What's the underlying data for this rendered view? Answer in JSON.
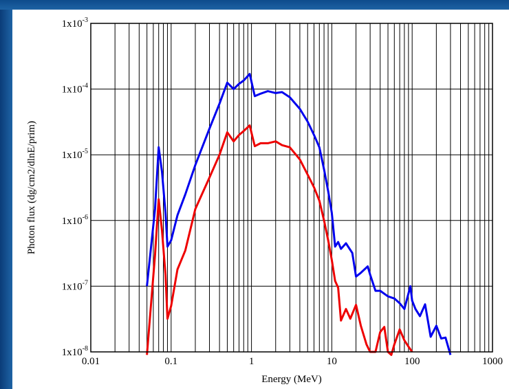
{
  "chart_data": {
    "type": "line",
    "title": "",
    "xlabel": "Energy (MeV)",
    "ylabel": "Photon flux (dg/cm2/dlnE/prim)",
    "x_scale": "log",
    "y_scale": "log",
    "xlim": [
      0.01,
      1000
    ],
    "ylim": [
      1e-08,
      0.001
    ],
    "grid": true,
    "legend": "none",
    "x_ticks": [
      {
        "value": 0.01,
        "label": "0.01"
      },
      {
        "value": 0.1,
        "label": "0.1"
      },
      {
        "value": 1,
        "label": "1"
      },
      {
        "value": 10,
        "label": "10"
      },
      {
        "value": 100,
        "label": "100"
      },
      {
        "value": 1000,
        "label": "1000"
      }
    ],
    "y_ticks": [
      {
        "value": 0.001,
        "mantissa": "1x10",
        "exponent": "-3"
      },
      {
        "value": 0.0001,
        "mantissa": "1x10",
        "exponent": "-4"
      },
      {
        "value": 1e-05,
        "mantissa": "1x10",
        "exponent": "-5"
      },
      {
        "value": 1e-06,
        "mantissa": "1x10",
        "exponent": "-6"
      },
      {
        "value": 1e-07,
        "mantissa": "1x10",
        "exponent": "-7"
      },
      {
        "value": 1e-08,
        "mantissa": "1x10",
        "exponent": "-8"
      }
    ],
    "series": [
      {
        "color": "#0000ee",
        "points": [
          [
            0.05,
            1e-07
          ],
          [
            0.063,
            1.5e-06
          ],
          [
            0.07,
            1.3e-05
          ],
          [
            0.077,
            5.5e-06
          ],
          [
            0.085,
            1.3e-06
          ],
          [
            0.09,
            4e-07
          ],
          [
            0.1,
            5e-07
          ],
          [
            0.12,
            1.2e-06
          ],
          [
            0.15,
            2.5e-06
          ],
          [
            0.2,
            7e-06
          ],
          [
            0.3,
            2.5e-05
          ],
          [
            0.4,
            6e-05
          ],
          [
            0.5,
            0.000125
          ],
          [
            0.6,
            0.0001
          ],
          [
            0.7,
            0.00012
          ],
          [
            0.8,
            0.000135
          ],
          [
            0.95,
            0.00017
          ],
          [
            1.1,
            7.8e-05
          ],
          [
            1.3,
            8.5e-05
          ],
          [
            1.6,
            9.3e-05
          ],
          [
            2.0,
            8.7e-05
          ],
          [
            2.4,
            9e-05
          ],
          [
            3.0,
            7.5e-05
          ],
          [
            4.0,
            5e-05
          ],
          [
            5.0,
            3.2e-05
          ],
          [
            6.0,
            2e-05
          ],
          [
            7.0,
            1.3e-05
          ],
          [
            8.0,
            6e-06
          ],
          [
            9.0,
            2.8e-06
          ],
          [
            10.0,
            1.3e-06
          ],
          [
            11.0,
            4e-07
          ],
          [
            12.0,
            4.7e-07
          ],
          [
            13.0,
            3.7e-07
          ],
          [
            15.0,
            4.5e-07
          ],
          [
            18.0,
            3.2e-07
          ],
          [
            20.0,
            1.4e-07
          ],
          [
            23.0,
            1.6e-07
          ],
          [
            28.0,
            2e-07
          ],
          [
            30.0,
            1.5e-07
          ],
          [
            35.0,
            8.5e-08
          ],
          [
            40.0,
            8.5e-08
          ],
          [
            50.0,
            7e-08
          ],
          [
            60.0,
            6.5e-08
          ],
          [
            70.0,
            5.5e-08
          ],
          [
            80.0,
            4.5e-08
          ],
          [
            95.0,
            1e-07
          ],
          [
            100.0,
            6e-08
          ],
          [
            110.0,
            4.5e-08
          ],
          [
            125.0,
            3.5e-08
          ],
          [
            145.0,
            5.3e-08
          ],
          [
            170.0,
            1.7e-08
          ],
          [
            200.0,
            2.5e-08
          ],
          [
            230.0,
            1.6e-08
          ],
          [
            260.0,
            1.65e-08
          ],
          [
            300.0,
            9e-09
          ]
        ]
      },
      {
        "color": "#ee0000",
        "points": [
          [
            0.05,
            9e-09
          ],
          [
            0.063,
            3e-07
          ],
          [
            0.07,
            2.1e-06
          ],
          [
            0.077,
            7e-07
          ],
          [
            0.085,
            1.5e-07
          ],
          [
            0.09,
            3.2e-08
          ],
          [
            0.1,
            5e-08
          ],
          [
            0.12,
            1.8e-07
          ],
          [
            0.15,
            3.5e-07
          ],
          [
            0.2,
            1.5e-06
          ],
          [
            0.3,
            4.5e-06
          ],
          [
            0.4,
            1e-05
          ],
          [
            0.5,
            2.2e-05
          ],
          [
            0.6,
            1.6e-05
          ],
          [
            0.7,
            2e-05
          ],
          [
            0.8,
            2.3e-05
          ],
          [
            0.95,
            2.8e-05
          ],
          [
            1.1,
            1.35e-05
          ],
          [
            1.3,
            1.5e-05
          ],
          [
            1.6,
            1.5e-05
          ],
          [
            2.0,
            1.6e-05
          ],
          [
            2.4,
            1.4e-05
          ],
          [
            3.0,
            1.3e-05
          ],
          [
            4.0,
            8.5e-06
          ],
          [
            5.0,
            5e-06
          ],
          [
            6.0,
            3.2e-06
          ],
          [
            7.0,
            2e-06
          ],
          [
            8.0,
            1e-06
          ],
          [
            9.0,
            5e-07
          ],
          [
            10.0,
            2.5e-07
          ],
          [
            11.0,
            1.2e-07
          ],
          [
            12.0,
            9.5e-08
          ],
          [
            13.0,
            3e-08
          ],
          [
            15.0,
            4.5e-08
          ],
          [
            17.0,
            3.2e-08
          ],
          [
            20.0,
            5.2e-08
          ],
          [
            23.0,
            2.5e-08
          ],
          [
            27.0,
            1.3e-08
          ],
          [
            30.0,
            1e-08
          ],
          [
            35.0,
            1e-08
          ],
          [
            40.0,
            2e-08
          ],
          [
            45.0,
            2.4e-08
          ],
          [
            50.0,
            1e-08
          ],
          [
            55.0,
            9e-09
          ],
          [
            60.0,
            1.3e-08
          ],
          [
            70.0,
            2.2e-08
          ],
          [
            80.0,
            1.5e-08
          ],
          [
            90.0,
            1.2e-08
          ],
          [
            100.0,
            1e-08
          ]
        ]
      }
    ]
  }
}
